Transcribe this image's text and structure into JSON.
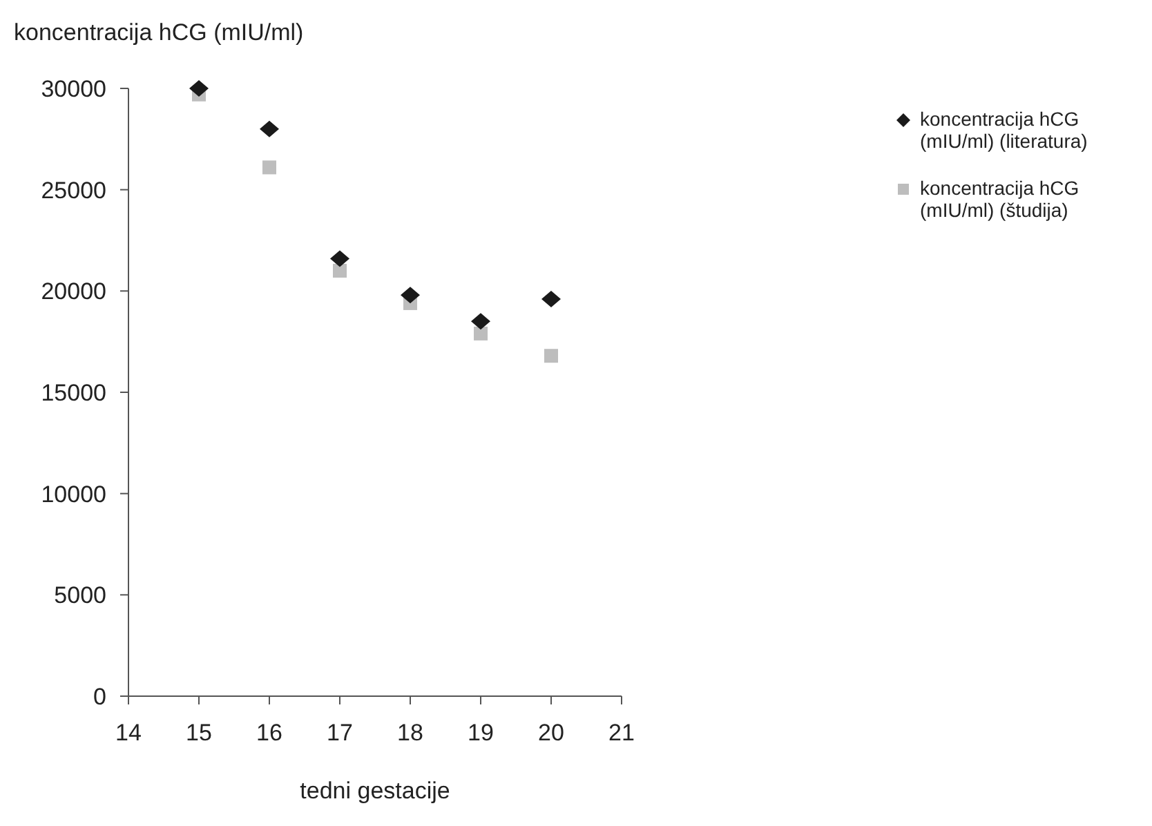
{
  "chart_data": {
    "type": "scatter",
    "ylabel": "koncentracija hCG (mIU/ml)",
    "xlabel": "tedni gestacije",
    "x": [
      15,
      16,
      17,
      18,
      19,
      20
    ],
    "series": [
      {
        "name": "koncentracija hCG (mIU/ml) (literatura)",
        "color": "#1a1a1a",
        "marker": "diamond",
        "values": [
          30000,
          28000,
          21600,
          19800,
          18500,
          19600
        ]
      },
      {
        "name": "koncentracija hCG (mIU/ml) (študija)",
        "color": "#bdbdbd",
        "marker": "square",
        "values": [
          29700,
          26100,
          21000,
          19400,
          17900,
          16800
        ]
      }
    ],
    "xlim": [
      14,
      21
    ],
    "xticks": [
      14,
      15,
      16,
      17,
      18,
      19,
      20,
      21
    ],
    "ylim": [
      0,
      30000
    ],
    "yticks": [
      0,
      5000,
      10000,
      15000,
      20000,
      25000,
      30000
    ],
    "grid": false,
    "legend": "top right"
  }
}
